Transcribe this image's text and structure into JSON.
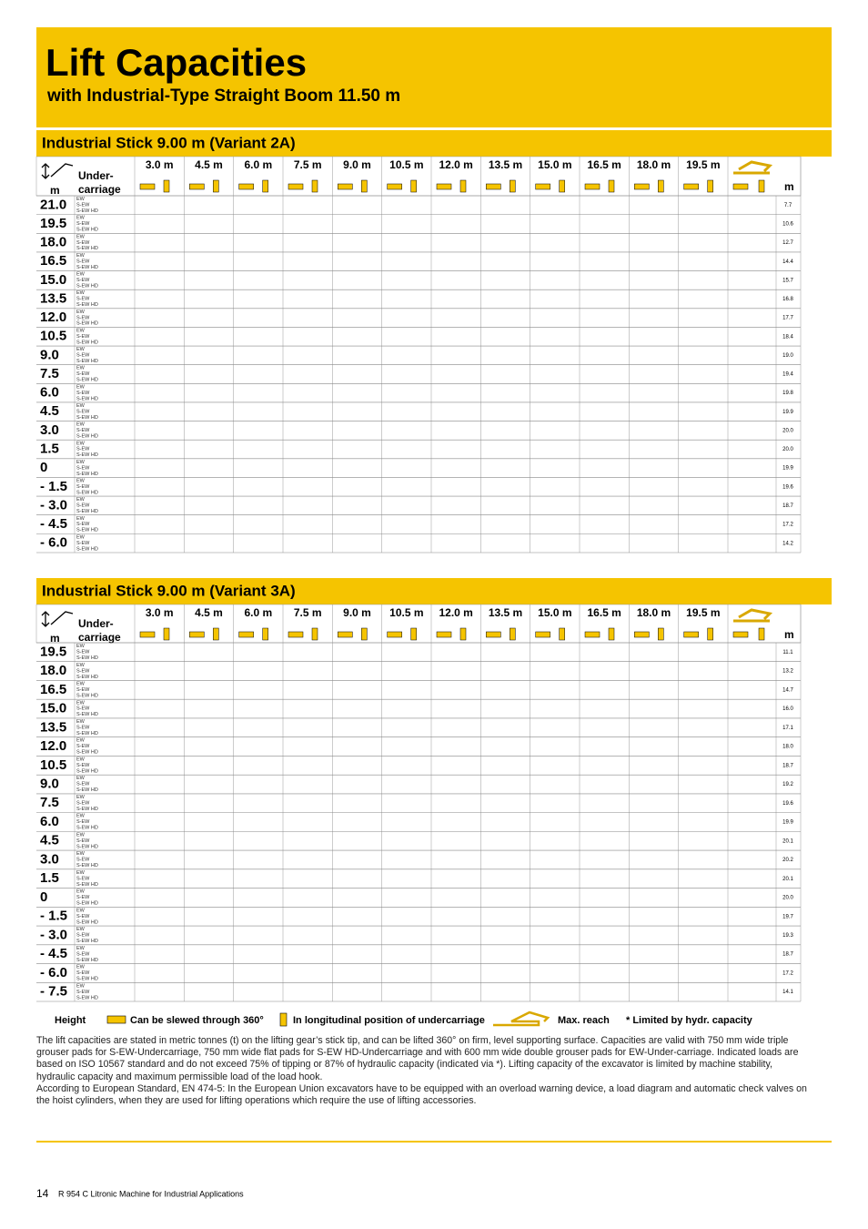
{
  "header": {
    "title": "Lift Capacities",
    "subtitle": "with Industrial-Type Straight Boom 11.50 m"
  },
  "column_labels": [
    "3.0 m",
    "4.5 m",
    "6.0 m",
    "7.5 m",
    "9.0 m",
    "10.5 m",
    "12.0 m",
    "13.5 m",
    "15.0 m",
    "16.5 m",
    "18.0 m",
    "19.5 m"
  ],
  "undercarriage_header": [
    "Under-",
    "carriage"
  ],
  "unit": "m",
  "undercarriages": [
    "EW",
    "S-EW",
    "S-EW HD"
  ],
  "tables": [
    {
      "title": "Industrial Stick 9.00 m (Variant 2A)",
      "rows": [
        {
          "height": "21.0",
          "max_reach": "7.7"
        },
        {
          "height": "19.5",
          "max_reach": "10.6"
        },
        {
          "height": "18.0",
          "max_reach": "12.7"
        },
        {
          "height": "16.5",
          "max_reach": "14.4"
        },
        {
          "height": "15.0",
          "max_reach": "15.7"
        },
        {
          "height": "13.5",
          "max_reach": "16.8"
        },
        {
          "height": "12.0",
          "max_reach": "17.7"
        },
        {
          "height": "10.5",
          "max_reach": "18.4"
        },
        {
          "height": "9.0",
          "max_reach": "19.0"
        },
        {
          "height": "7.5",
          "max_reach": "19.4"
        },
        {
          "height": "6.0",
          "max_reach": "19.8"
        },
        {
          "height": "4.5",
          "max_reach": "19.9"
        },
        {
          "height": "3.0",
          "max_reach": "20.0"
        },
        {
          "height": "1.5",
          "max_reach": "20.0"
        },
        {
          "height": "0",
          "max_reach": "19.9"
        },
        {
          "height": "- 1.5",
          "max_reach": "19.6"
        },
        {
          "height": "- 3.0",
          "max_reach": "18.7"
        },
        {
          "height": "- 4.5",
          "max_reach": "17.2"
        },
        {
          "height": "- 6.0",
          "max_reach": "14.2"
        }
      ]
    },
    {
      "title": "Industrial Stick 9.00 m (Variant 3A)",
      "rows": [
        {
          "height": "19.5",
          "max_reach": "11.1"
        },
        {
          "height": "18.0",
          "max_reach": "13.2"
        },
        {
          "height": "16.5",
          "max_reach": "14.7"
        },
        {
          "height": "15.0",
          "max_reach": "16.0"
        },
        {
          "height": "13.5",
          "max_reach": "17.1"
        },
        {
          "height": "12.0",
          "max_reach": "18.0"
        },
        {
          "height": "10.5",
          "max_reach": "18.7"
        },
        {
          "height": "9.0",
          "max_reach": "19.2"
        },
        {
          "height": "7.5",
          "max_reach": "19.6"
        },
        {
          "height": "6.0",
          "max_reach": "19.9"
        },
        {
          "height": "4.5",
          "max_reach": "20.1"
        },
        {
          "height": "3.0",
          "max_reach": "20.2"
        },
        {
          "height": "1.5",
          "max_reach": "20.1"
        },
        {
          "height": "0",
          "max_reach": "20.0"
        },
        {
          "height": "- 1.5",
          "max_reach": "19.7"
        },
        {
          "height": "- 3.0",
          "max_reach": "19.3"
        },
        {
          "height": "- 4.5",
          "max_reach": "18.7"
        },
        {
          "height": "- 6.0",
          "max_reach": "17.2"
        },
        {
          "height": "- 7.5",
          "max_reach": "14.1"
        }
      ]
    }
  ],
  "legend": {
    "height": "Height",
    "slew": "Can be slewed through 360°",
    "longitudinal": "In longitudinal position of undercarriage",
    "max_reach": "Max. reach",
    "limited": "* Limited by hydr. capacity"
  },
  "notes": [
    "The lift capacities are stated in metric tonnes (t) on the lifting gear’s stick tip, and can be lifted 360° on firm, level supporting surface. Capacities are valid with 750 mm wide triple grouser pads for S-EW-Undercarriage, 750 mm wide flat pads for S-EW HD-Undercarriage and with 600 mm wide double grouser pads for EW-Under-carriage. Indicated loads are based on ISO 10567 standard and do not exceed 75% of tipping or 87% of hydraulic capacity (indicated via *). Lifting capacity of the excavator is limited by machine stability, hydraulic capacity and maximum permissible load of the load hook.",
    "According to European Standard, EN 474-5: In the European Union excavators have to be equipped with an overload warning device, a load diagram and automatic check valves on the hoist cylinders, when they are used for lifting operations which require the use of lifting accessories."
  ],
  "footer": {
    "page": "14",
    "text": "R 954 C Litronic Machine for Industrial Applications"
  }
}
